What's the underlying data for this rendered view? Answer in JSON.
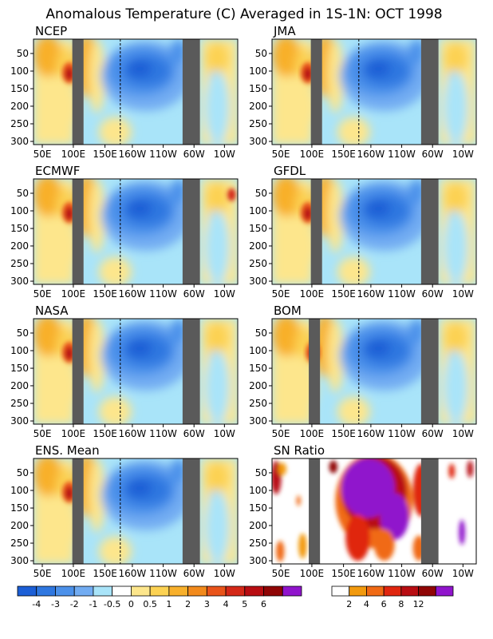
{
  "title": "Anomalous Temperature (C) Averaged in 1S-1N: OCT 1998",
  "chart_data": [
    {
      "type": "heatmap",
      "title": "NCEP",
      "field": "anomaly"
    },
    {
      "type": "heatmap",
      "title": "JMA",
      "field": "anomaly"
    },
    {
      "type": "heatmap",
      "title": "ECMWF",
      "field": "anomaly"
    },
    {
      "type": "heatmap",
      "title": "GFDL",
      "field": "anomaly"
    },
    {
      "type": "heatmap",
      "title": "NASA",
      "field": "anomaly"
    },
    {
      "type": "heatmap",
      "title": "BOM",
      "field": "anomaly"
    },
    {
      "type": "heatmap",
      "title": "ENS. Mean",
      "field": "anomaly"
    },
    {
      "type": "heatmap",
      "title": "SN Ratio",
      "field": "snr"
    }
  ],
  "axes": {
    "x_ticks": [
      "50E",
      "100E",
      "150E",
      "160W",
      "110W",
      "60W",
      "10W"
    ],
    "y_ticks": [
      "50",
      "100",
      "150",
      "200",
      "250",
      "300"
    ],
    "y_range": [
      300,
      0
    ]
  },
  "anomaly_colorbar": {
    "colors": [
      "#1c5fd6",
      "#2f77e0",
      "#4c91ea",
      "#72acf2",
      "#a9e4f9",
      "#ffffff",
      "#fde68c",
      "#fcd253",
      "#f8b02c",
      "#f28a1c",
      "#e9541a",
      "#d42818",
      "#b80d12",
      "#8f0505",
      "#9014cc"
    ],
    "labels": [
      "-4",
      "-3",
      "-2",
      "-1",
      "-0.5",
      "0",
      "0.5",
      "1",
      "2",
      "3",
      "4",
      "5",
      "6"
    ]
  },
  "snr_colorbar": {
    "colors": [
      "#ffffff",
      "#f29a0e",
      "#f06a14",
      "#e0260f",
      "#b80d12",
      "#8f0505",
      "#9014cc"
    ],
    "labels": [
      "2",
      "4",
      "6",
      "8",
      "12"
    ]
  },
  "land_color": "#5a5a5a"
}
